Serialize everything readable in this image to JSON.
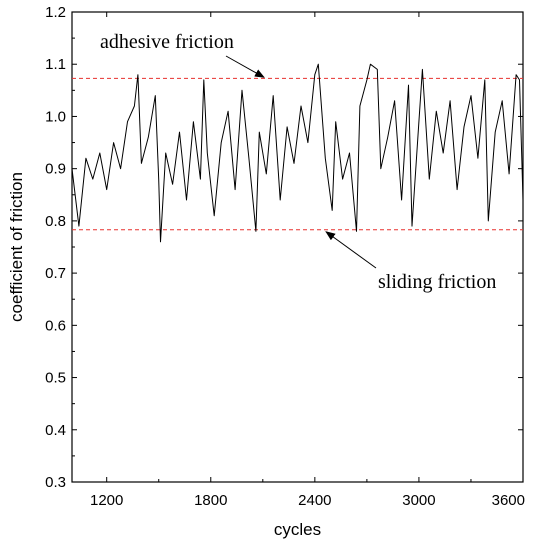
{
  "chart_data": {
    "type": "line",
    "xlabel": "cycles",
    "ylabel": "coefficient of friction",
    "xlim": [
      1000,
      3600
    ],
    "ylim": [
      0.3,
      1.2
    ],
    "x_ticks": [
      1200,
      1800,
      2400,
      3000,
      3600
    ],
    "y_ticks": [
      0.3,
      0.4,
      0.5,
      0.6,
      0.7,
      0.8,
      0.9,
      1.0,
      1.1,
      1.2
    ],
    "y_tick_labels": [
      "0.3",
      "0.4",
      "0.5",
      "0.6",
      "0.7",
      "0.8",
      "0.9",
      "1.0",
      "1.1",
      "1.2"
    ],
    "grid": false,
    "reference_lines": [
      {
        "y": 1.073,
        "color": "#e8312f",
        "style": "dashed"
      },
      {
        "y": 0.783,
        "color": "#e8312f",
        "style": "dashed"
      }
    ],
    "annotations": [
      {
        "text": "adhesive friction",
        "points_to_y": 1.073
      },
      {
        "text": "sliding friction",
        "points_to_y": 0.783
      }
    ],
    "series": [
      {
        "color": "#000000",
        "x": [
          1000,
          1040,
          1080,
          1120,
          1160,
          1200,
          1240,
          1280,
          1320,
          1360,
          1380,
          1400,
          1440,
          1480,
          1500,
          1510,
          1540,
          1580,
          1620,
          1660,
          1700,
          1740,
          1760,
          1780,
          1820,
          1860,
          1900,
          1940,
          1980,
          2020,
          2060,
          2080,
          2120,
          2160,
          2200,
          2240,
          2280,
          2320,
          2360,
          2400,
          2420,
          2460,
          2500,
          2520,
          2560,
          2600,
          2640,
          2660,
          2700,
          2720,
          2760,
          2780,
          2820,
          2860,
          2900,
          2940,
          2960,
          3000,
          3020,
          3060,
          3100,
          3140,
          3180,
          3220,
          3260,
          3300,
          3340,
          3380,
          3400,
          3440,
          3480,
          3520,
          3560,
          3580,
          3600
        ],
        "y": [
          0.9,
          0.79,
          0.92,
          0.88,
          0.93,
          0.86,
          0.95,
          0.9,
          0.99,
          1.02,
          1.08,
          0.91,
          0.96,
          1.04,
          0.88,
          0.76,
          0.93,
          0.87,
          0.97,
          0.84,
          0.99,
          0.88,
          1.07,
          0.93,
          0.81,
          0.95,
          1.01,
          0.86,
          1.05,
          0.92,
          0.78,
          0.97,
          0.89,
          1.04,
          0.84,
          0.98,
          0.91,
          1.02,
          0.95,
          1.08,
          1.1,
          0.92,
          0.82,
          0.99,
          0.88,
          0.93,
          0.78,
          1.02,
          1.07,
          1.1,
          1.09,
          0.9,
          0.96,
          1.03,
          0.84,
          1.06,
          0.79,
          0.99,
          1.09,
          0.88,
          1.01,
          0.93,
          1.03,
          0.86,
          0.98,
          1.04,
          0.92,
          1.07,
          0.8,
          0.97,
          1.03,
          0.89,
          1.08,
          1.07,
          0.84
        ]
      }
    ]
  }
}
